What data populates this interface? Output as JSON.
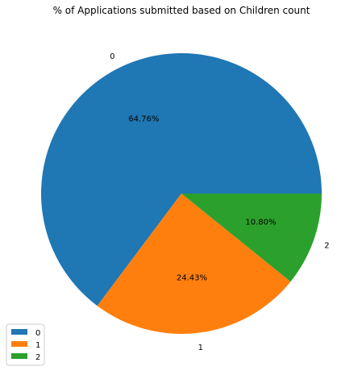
{
  "chart_data": {
    "type": "pie",
    "title": "% of Applications submitted based on Children count",
    "categories": [
      "0",
      "1",
      "2"
    ],
    "values": [
      64.76,
      24.43,
      10.8
    ],
    "value_labels": [
      "64.76%",
      "24.43%",
      "10.80%"
    ],
    "colors": [
      "#1f77b4",
      "#ff7f0e",
      "#2ca02c"
    ],
    "legend": {
      "entries": [
        "0",
        "1",
        "2"
      ],
      "placement": "lower-left"
    }
  }
}
